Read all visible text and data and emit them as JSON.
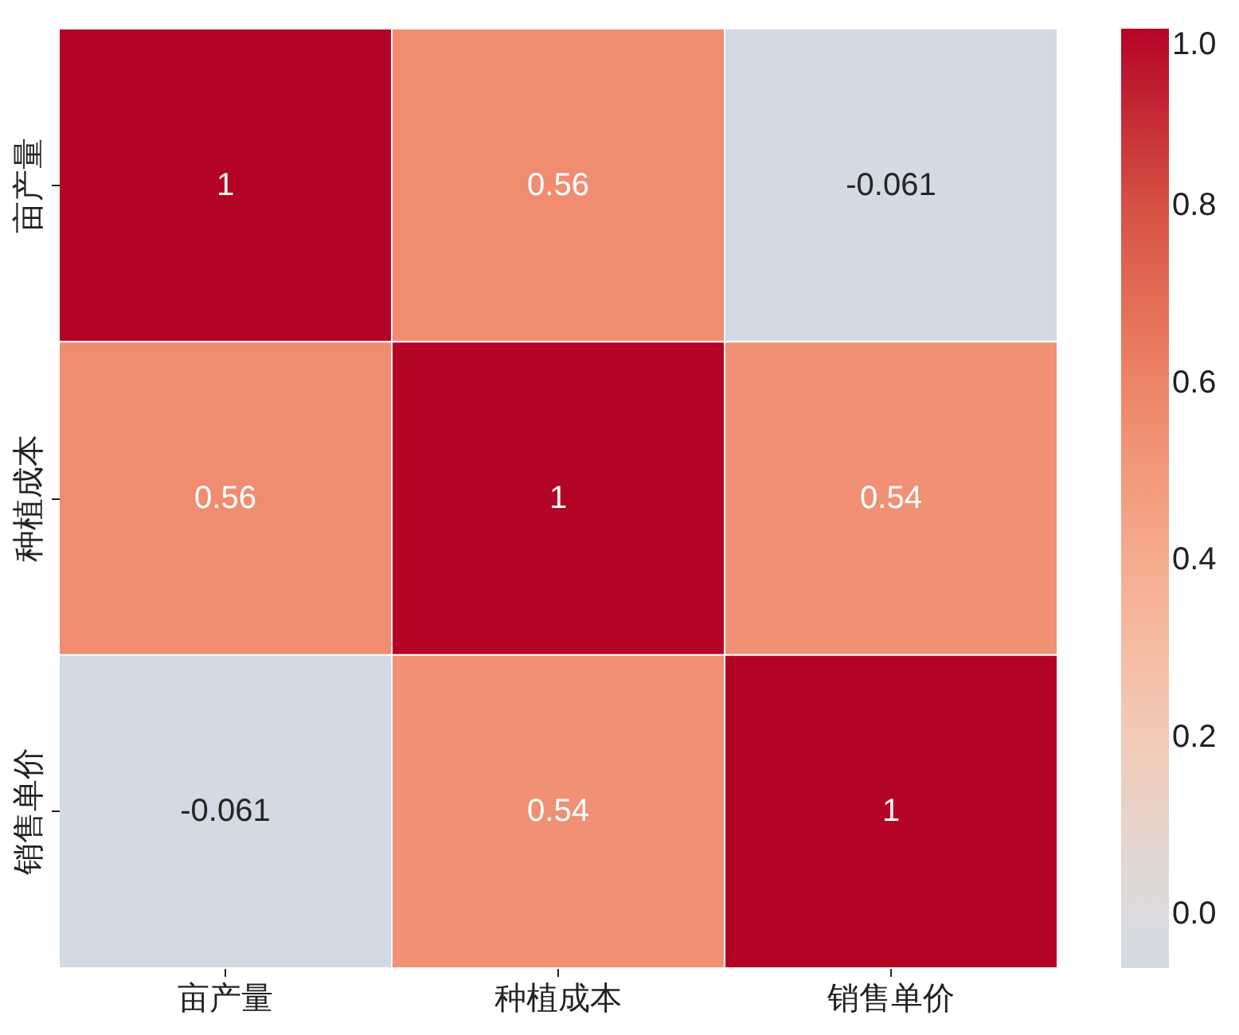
{
  "chart_data": {
    "type": "heatmap",
    "categories": [
      "亩产量",
      "种植成本",
      "销售单价"
    ],
    "y_categories": [
      "亩产量",
      "种植成本",
      "销售单价"
    ],
    "cells": [
      [
        1,
        0.56,
        -0.061
      ],
      [
        0.56,
        1,
        0.54
      ],
      [
        -0.061,
        0.54,
        1
      ]
    ],
    "data_labels": true,
    "clim": [
      -0.061,
      1.0
    ],
    "cticks": [
      {
        "value": 0,
        "label": "0.0"
      },
      0.2,
      0.4,
      0.6,
      0.8,
      {
        "value": 1,
        "label": "1.0"
      }
    ]
  }
}
